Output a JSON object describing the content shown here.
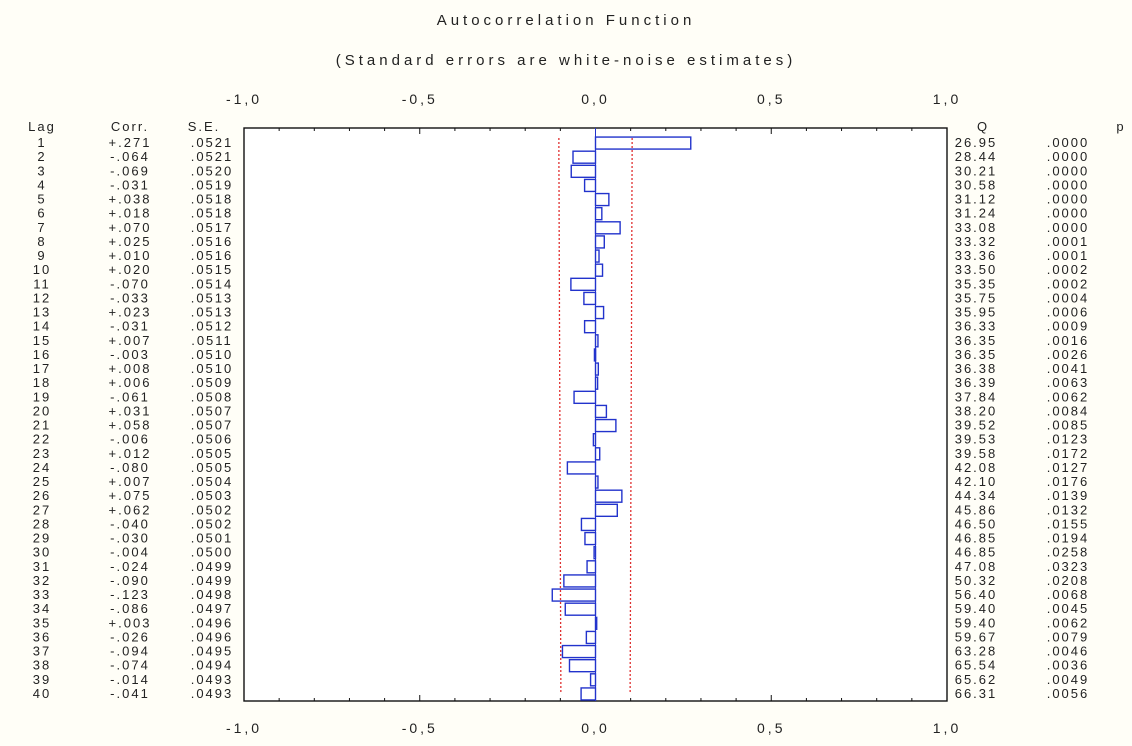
{
  "chart_data": {
    "type": "bar",
    "orientation": "horizontal",
    "title": "Autocorrelation Function",
    "subtitle": "(Standard errors are white-noise estimates)",
    "xlim": [
      -1.0,
      1.0
    ],
    "x_ticks": [
      "-1,0",
      "-0,5",
      "0,0",
      "0,5",
      "1,0"
    ],
    "x_tick_values": [
      -1.0,
      -0.5,
      0.0,
      0.5,
      1.0
    ],
    "column_headers": {
      "lag": "Lag",
      "corr": "Corr.",
      "se": "S.E.",
      "q": "Q",
      "p": "p"
    },
    "confidence_limit_color": "#e03030",
    "bar_color": "#2233cc",
    "rows": [
      {
        "lag": "1",
        "corr_label": "+.271",
        "corr": 0.271,
        "se_label": ".0521",
        "se": 0.0521,
        "q": "26.95",
        "p": ".0000"
      },
      {
        "lag": "2",
        "corr_label": "-.064",
        "corr": -0.064,
        "se_label": ".0521",
        "se": 0.0521,
        "q": "28.44",
        "p": ".0000"
      },
      {
        "lag": "3",
        "corr_label": "-.069",
        "corr": -0.069,
        "se_label": ".0520",
        "se": 0.052,
        "q": "30.21",
        "p": ".0000"
      },
      {
        "lag": "4",
        "corr_label": "-.031",
        "corr": -0.031,
        "se_label": ".0519",
        "se": 0.0519,
        "q": "30.58",
        "p": ".0000"
      },
      {
        "lag": "5",
        "corr_label": "+.038",
        "corr": 0.038,
        "se_label": ".0518",
        "se": 0.0518,
        "q": "31.12",
        "p": ".0000"
      },
      {
        "lag": "6",
        "corr_label": "+.018",
        "corr": 0.018,
        "se_label": ".0518",
        "se": 0.0518,
        "q": "31.24",
        "p": ".0000"
      },
      {
        "lag": "7",
        "corr_label": "+.070",
        "corr": 0.07,
        "se_label": ".0517",
        "se": 0.0517,
        "q": "33.08",
        "p": ".0000"
      },
      {
        "lag": "8",
        "corr_label": "+.025",
        "corr": 0.025,
        "se_label": ".0516",
        "se": 0.0516,
        "q": "33.32",
        "p": ".0001"
      },
      {
        "lag": "9",
        "corr_label": "+.010",
        "corr": 0.01,
        "se_label": ".0516",
        "se": 0.0516,
        "q": "33.36",
        "p": ".0001"
      },
      {
        "lag": "10",
        "corr_label": "+.020",
        "corr": 0.02,
        "se_label": ".0515",
        "se": 0.0515,
        "q": "33.50",
        "p": ".0002"
      },
      {
        "lag": "11",
        "corr_label": "-.070",
        "corr": -0.07,
        "se_label": ".0514",
        "se": 0.0514,
        "q": "35.35",
        "p": ".0002"
      },
      {
        "lag": "12",
        "corr_label": "-.033",
        "corr": -0.033,
        "se_label": ".0513",
        "se": 0.0513,
        "q": "35.75",
        "p": ".0004"
      },
      {
        "lag": "13",
        "corr_label": "+.023",
        "corr": 0.023,
        "se_label": ".0513",
        "se": 0.0513,
        "q": "35.95",
        "p": ".0006"
      },
      {
        "lag": "14",
        "corr_label": "-.031",
        "corr": -0.031,
        "se_label": ".0512",
        "se": 0.0512,
        "q": "36.33",
        "p": ".0009"
      },
      {
        "lag": "15",
        "corr_label": "+.007",
        "corr": 0.007,
        "se_label": ".0511",
        "se": 0.0511,
        "q": "36.35",
        "p": ".0016"
      },
      {
        "lag": "16",
        "corr_label": "-.003",
        "corr": -0.003,
        "se_label": ".0510",
        "se": 0.051,
        "q": "36.35",
        "p": ".0026"
      },
      {
        "lag": "17",
        "corr_label": "+.008",
        "corr": 0.008,
        "se_label": ".0510",
        "se": 0.051,
        "q": "36.38",
        "p": ".0041"
      },
      {
        "lag": "18",
        "corr_label": "+.006",
        "corr": 0.006,
        "se_label": ".0509",
        "se": 0.0509,
        "q": "36.39",
        "p": ".0063"
      },
      {
        "lag": "19",
        "corr_label": "-.061",
        "corr": -0.061,
        "se_label": ".0508",
        "se": 0.0508,
        "q": "37.84",
        "p": ".0062"
      },
      {
        "lag": "20",
        "corr_label": "+.031",
        "corr": 0.031,
        "se_label": ".0507",
        "se": 0.0507,
        "q": "38.20",
        "p": ".0084"
      },
      {
        "lag": "21",
        "corr_label": "+.058",
        "corr": 0.058,
        "se_label": ".0507",
        "se": 0.0507,
        "q": "39.52",
        "p": ".0085"
      },
      {
        "lag": "22",
        "corr_label": "-.006",
        "corr": -0.006,
        "se_label": ".0506",
        "se": 0.0506,
        "q": "39.53",
        "p": ".0123"
      },
      {
        "lag": "23",
        "corr_label": "+.012",
        "corr": 0.012,
        "se_label": ".0505",
        "se": 0.0505,
        "q": "39.58",
        "p": ".0172"
      },
      {
        "lag": "24",
        "corr_label": "-.080",
        "corr": -0.08,
        "se_label": ".0505",
        "se": 0.0505,
        "q": "42.08",
        "p": ".0127"
      },
      {
        "lag": "25",
        "corr_label": "+.007",
        "corr": 0.007,
        "se_label": ".0504",
        "se": 0.0504,
        "q": "42.10",
        "p": ".0176"
      },
      {
        "lag": "26",
        "corr_label": "+.075",
        "corr": 0.075,
        "se_label": ".0503",
        "se": 0.0503,
        "q": "44.34",
        "p": ".0139"
      },
      {
        "lag": "27",
        "corr_label": "+.062",
        "corr": 0.062,
        "se_label": ".0502",
        "se": 0.0502,
        "q": "45.86",
        "p": ".0132"
      },
      {
        "lag": "28",
        "corr_label": "-.040",
        "corr": -0.04,
        "se_label": ".0502",
        "se": 0.0502,
        "q": "46.50",
        "p": ".0155"
      },
      {
        "lag": "29",
        "corr_label": "-.030",
        "corr": -0.03,
        "se_label": ".0501",
        "se": 0.0501,
        "q": "46.85",
        "p": ".0194"
      },
      {
        "lag": "30",
        "corr_label": "-.004",
        "corr": -0.004,
        "se_label": ".0500",
        "se": 0.05,
        "q": "46.85",
        "p": ".0258"
      },
      {
        "lag": "31",
        "corr_label": "-.024",
        "corr": -0.024,
        "se_label": ".0499",
        "se": 0.0499,
        "q": "47.08",
        "p": ".0323"
      },
      {
        "lag": "32",
        "corr_label": "-.090",
        "corr": -0.09,
        "se_label": ".0499",
        "se": 0.0499,
        "q": "50.32",
        "p": ".0208"
      },
      {
        "lag": "33",
        "corr_label": "-.123",
        "corr": -0.123,
        "se_label": ".0498",
        "se": 0.0498,
        "q": "56.40",
        "p": ".0068"
      },
      {
        "lag": "34",
        "corr_label": "-.086",
        "corr": -0.086,
        "se_label": ".0497",
        "se": 0.0497,
        "q": "59.40",
        "p": ".0045"
      },
      {
        "lag": "35",
        "corr_label": "+.003",
        "corr": 0.003,
        "se_label": ".0496",
        "se": 0.0496,
        "q": "59.40",
        "p": ".0062"
      },
      {
        "lag": "36",
        "corr_label": "-.026",
        "corr": -0.026,
        "se_label": ".0496",
        "se": 0.0496,
        "q": "59.67",
        "p": ".0079"
      },
      {
        "lag": "37",
        "corr_label": "-.094",
        "corr": -0.094,
        "se_label": ".0495",
        "se": 0.0495,
        "q": "63.28",
        "p": ".0046"
      },
      {
        "lag": "38",
        "corr_label": "-.074",
        "corr": -0.074,
        "se_label": ".0494",
        "se": 0.0494,
        "q": "65.54",
        "p": ".0036"
      },
      {
        "lag": "39",
        "corr_label": "-.014",
        "corr": -0.014,
        "se_label": ".0493",
        "se": 0.0493,
        "q": "65.62",
        "p": ".0049"
      },
      {
        "lag": "40",
        "corr_label": "-.041",
        "corr": -0.041,
        "se_label": ".0493",
        "se": 0.0493,
        "q": "66.31",
        "p": ".0056"
      }
    ]
  }
}
